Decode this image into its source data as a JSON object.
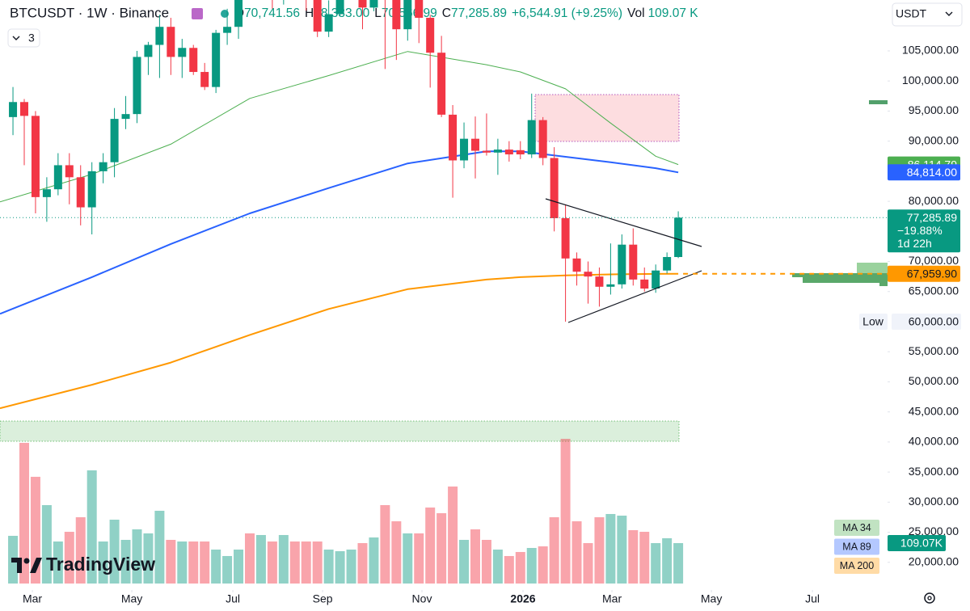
{
  "chart_data": {
    "type": "candlestick",
    "title": "BTCUSDT · 1W · Binance",
    "header": {
      "fields": [
        {
          "key": "O",
          "value": "70,741.56"
        },
        {
          "key": "H",
          "value": "78,333.00"
        },
        {
          "key": "L",
          "value": "70,566.99"
        },
        {
          "key": "C",
          "value": "77,285.89"
        }
      ],
      "change": "+6,544.91 (+9.25%)",
      "volume": {
        "key": "Vol",
        "value": "109.07 K"
      }
    },
    "indicator_count": "3",
    "currency": "USDT",
    "logo": "TradingView",
    "up_color": "#089981",
    "down_color": "#f23645",
    "open": [
      94000,
      96500,
      94200,
      80700,
      82000,
      86000,
      84000,
      79000,
      85000,
      86500,
      93700,
      94500,
      104000,
      106000,
      109000,
      104000,
      105500,
      101500,
      99000,
      108000,
      109000,
      119800,
      117300,
      119400,
      114200,
      119300,
      117400,
      113500,
      108200,
      111100,
      115300,
      115300,
      112200,
      123500,
      115100,
      108600,
      114500,
      110500,
      104700,
      94400,
      86800,
      90400,
      88400,
      88100,
      88600,
      88500,
      87800,
      93500,
      87200,
      77200,
      70500,
      68300,
      67500,
      65800,
      66200,
      72800,
      67000,
      65500,
      68500,
      70741.56
    ],
    "high": [
      99000,
      97000,
      95000,
      84000,
      88000,
      88000,
      86000,
      86500,
      88000,
      95500,
      97500,
      105000,
      106500,
      111000,
      110500,
      107000,
      106000,
      103000,
      108500,
      112000,
      123000,
      123200,
      120200,
      119800,
      122300,
      124500,
      117600,
      113600,
      113400,
      116700,
      117900,
      115500,
      125700,
      126200,
      115900,
      114000,
      116400,
      111000,
      107500,
      96000,
      93100,
      94100,
      94600,
      90400,
      90000,
      90000,
      97900,
      94000,
      89000,
      79500,
      71500,
      70000,
      69000,
      73000,
      74500,
      75500,
      69000,
      69500,
      71500,
      78333
    ],
    "low": [
      91000,
      86000,
      78000,
      76600,
      81000,
      79500,
      76000,
      74500,
      83000,
      84000,
      92000,
      93000,
      101000,
      100500,
      101000,
      100500,
      101000,
      98500,
      98000,
      106000,
      107000,
      115700,
      114700,
      112000,
      112700,
      116800,
      111700,
      107300,
      107300,
      110700,
      114400,
      108600,
      111600,
      102000,
      103500,
      106700,
      106300,
      98900,
      94000,
      80600,
      85500,
      83800,
      87600,
      84400,
      86600,
      87000,
      87200,
      86000,
      75000,
      60000,
      66000,
      63000,
      62500,
      64500,
      65500,
      66000,
      65000,
      64800,
      68000,
      70566.99
    ],
    "close": [
      96500,
      94200,
      80700,
      82000,
      86000,
      84000,
      79000,
      85000,
      86500,
      93700,
      94500,
      104000,
      106000,
      109000,
      104000,
      105500,
      101500,
      99000,
      108000,
      109000,
      119800,
      117300,
      119400,
      114200,
      119300,
      117400,
      113500,
      108200,
      111100,
      115300,
      115300,
      112200,
      123500,
      115100,
      108600,
      114500,
      110500,
      104700,
      94400,
      86800,
      90400,
      88400,
      88100,
      88600,
      87800,
      87800,
      93500,
      87200,
      77200,
      70500,
      68300,
      67500,
      65800,
      66200,
      72800,
      67000,
      65500,
      68500,
      70741.56,
      77285.89
    ],
    "last_price": {
      "label": "77,285.89",
      "change": "−19.88%",
      "countdown": "1d 22h"
    },
    "low_marker": {
      "title": "Low",
      "label": "60,000.00"
    },
    "volume": {
      "values": [
        128.7,
        379.6,
        288,
        211.6,
        113.4,
        139.6,
        178.9,
        305.4,
        113.4,
        172.3,
        117.8,
        146.2,
        135.3,
        196.3,
        117.8,
        113.4,
        113.4,
        113.4,
        91.6,
        74.2,
        91.6,
        135.3,
        130.9,
        113.4,
        130.9,
        113.4,
        113.4,
        113.4,
        91.6,
        87.3,
        91.6,
        109.1,
        124.3,
        211.6,
        168,
        135.3,
        135.3,
        205.1,
        189.8,
        261.8,
        117.8,
        146.2,
        117.8,
        91.6,
        74.2,
        85.1,
        96,
        100.3,
        178.9,
        390.5,
        168,
        109.1,
        178.9,
        187.6,
        183.2,
        144,
        139.6,
        109.1,
        122.2,
        109.07
      ],
      "value_label": "109.07K",
      "ylim": [
        0,
        400
      ]
    },
    "series": [
      {
        "name": "MA 34",
        "color": "#4caf50",
        "width": 1,
        "x": [
          -1.15,
          7,
          14,
          21,
          28,
          35,
          42,
          45,
          49,
          53,
          57,
          59
        ],
        "values": [
          79900,
          84500,
          89500,
          97100,
          100900,
          104900,
          102700,
          101500,
          98700,
          93000,
          87500,
          86114.79
        ],
        "value_label": "86,114.79"
      },
      {
        "name": "MA 89",
        "color": "#2962ff",
        "width": 2,
        "x": [
          -1.15,
          7,
          14,
          21,
          28,
          35,
          42,
          45,
          49,
          53,
          57,
          59
        ],
        "values": [
          61300,
          67400,
          72900,
          78000,
          82200,
          86300,
          88300,
          88300,
          87400,
          86500,
          85500,
          84814
        ],
        "value_label": "84,814.00"
      },
      {
        "name": "MA 200",
        "color": "#ff9800",
        "width": 2,
        "x": [
          -1.15,
          7,
          14,
          21,
          28,
          35,
          42,
          45,
          49,
          53,
          57,
          59
        ],
        "values": [
          45600,
          49500,
          53200,
          57800,
          62100,
          65400,
          67000,
          67400,
          67700,
          67850,
          67930,
          67959.9
        ],
        "value_label": "67,959.90"
      }
    ],
    "xlim": [
      -1.15,
      77.56
    ],
    "xticks": [
      {
        "value": 1.72,
        "label": "Mar"
      },
      {
        "value": 10.54,
        "label": "May"
      },
      {
        "value": 19.5,
        "label": "Jul"
      },
      {
        "value": 27.46,
        "label": "Sep"
      },
      {
        "value": 36.27,
        "label": "Nov"
      },
      {
        "value": 45.23,
        "label": "2026"
      },
      {
        "value": 53.12,
        "label": "Mar"
      },
      {
        "value": 61.94,
        "label": "May"
      },
      {
        "value": 70.9,
        "label": "Jul"
      }
    ],
    "ylim": [
      15400,
      113460
    ],
    "yticks": [
      {
        "value": 105000,
        "label": "105,000.00"
      },
      {
        "value": 100000,
        "label": "100,000.00"
      },
      {
        "value": 95000,
        "label": "95,000.00"
      },
      {
        "value": 90000,
        "label": "90,000.00"
      },
      {
        "value": 80000,
        "label": "80,000.00"
      },
      {
        "value": 70000,
        "label": "70,000.00"
      },
      {
        "value": 65000,
        "label": "65,000.00"
      },
      {
        "value": 55000,
        "label": "55,000.00"
      },
      {
        "value": 50000,
        "label": "50,000.00"
      },
      {
        "value": 45000,
        "label": "45,000.00"
      },
      {
        "value": 40000,
        "label": "40,000.00"
      },
      {
        "value": 35000,
        "label": "35,000.00"
      },
      {
        "value": 30000,
        "label": "30,000.00"
      },
      {
        "value": 25000,
        "label": "25,000.00"
      },
      {
        "value": 20000,
        "label": "20,000.00"
      }
    ]
  }
}
